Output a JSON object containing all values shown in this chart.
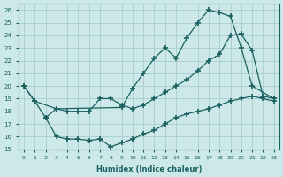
{
  "xlabel": "Humidex (Indice chaleur)",
  "bg_color": "#cce8e8",
  "line_color": "#1a6060",
  "grid_color": "#aacccc",
  "xlim": [
    -0.5,
    23.5
  ],
  "ylim": [
    15,
    26.5
  ],
  "xticks": [
    0,
    1,
    2,
    3,
    4,
    5,
    6,
    7,
    8,
    9,
    10,
    11,
    12,
    13,
    14,
    15,
    16,
    17,
    18,
    19,
    20,
    21,
    22,
    23
  ],
  "yticks": [
    15,
    16,
    17,
    18,
    19,
    20,
    21,
    22,
    23,
    24,
    25,
    26
  ],
  "line1_x": [
    0,
    1,
    3,
    9,
    10,
    11,
    12,
    13,
    14,
    15,
    16,
    17,
    18,
    19,
    20,
    21,
    23
  ],
  "line1_y": [
    20.0,
    18.8,
    18.2,
    18.3,
    19.8,
    21.0,
    22.2,
    23.0,
    22.2,
    23.8,
    25.0,
    26.0,
    25.8,
    25.5,
    23.0,
    20.0,
    19.0
  ],
  "line2_x": [
    0,
    1,
    2,
    3,
    4,
    5,
    6,
    7,
    8,
    9,
    10,
    11,
    12,
    13,
    14,
    15,
    16,
    17,
    18,
    19,
    20,
    21,
    22,
    23
  ],
  "line2_y": [
    20.0,
    18.8,
    17.5,
    18.2,
    18.0,
    18.0,
    18.0,
    19.0,
    19.0,
    18.5,
    18.2,
    18.5,
    19.0,
    19.5,
    20.0,
    20.5,
    21.2,
    22.0,
    22.5,
    24.0,
    24.1,
    22.8,
    19.2,
    19.0
  ],
  "line3_x": [
    2,
    3,
    4,
    5,
    6,
    7,
    8,
    9,
    10,
    11,
    12,
    13,
    14,
    15,
    16,
    17,
    18,
    19,
    20,
    21,
    22,
    23
  ],
  "line3_y": [
    17.5,
    16.0,
    15.8,
    15.8,
    15.7,
    15.8,
    15.2,
    15.5,
    15.8,
    16.2,
    16.5,
    17.0,
    17.5,
    17.8,
    18.0,
    18.2,
    18.5,
    18.8,
    19.0,
    19.2,
    19.0,
    18.8
  ]
}
